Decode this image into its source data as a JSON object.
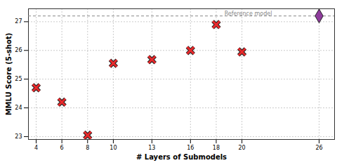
{
  "chart_data": {
    "type": "scatter",
    "x_label": "# Layers of Submodels",
    "y_label": "MMLU Score (5-shot)",
    "x": [
      4,
      6,
      8,
      10,
      13,
      16,
      18,
      20
    ],
    "values": [
      24.7,
      24.2,
      23.05,
      25.55,
      25.68,
      26.0,
      26.9,
      25.95
    ],
    "color": "#e8292b",
    "marker": "x",
    "reference": {
      "label": "Reference model",
      "x": 26,
      "value": 27.2,
      "color": "#8e3c9c",
      "marker": "diamond",
      "line_style": "dashed"
    },
    "xlim": [
      3.4,
      27.2
    ],
    "xticks": [
      4,
      6,
      8,
      10,
      13,
      16,
      18,
      20,
      26
    ],
    "ylim": [
      22.9,
      27.45
    ],
    "yticks": [
      23,
      24,
      25,
      26,
      27
    ],
    "grid": true
  }
}
